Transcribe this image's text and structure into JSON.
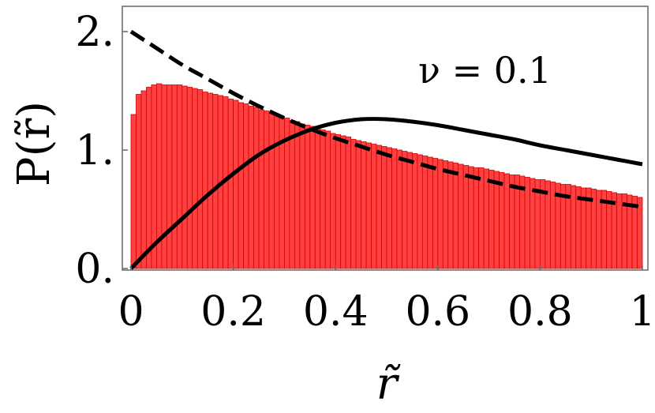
{
  "chart_data": {
    "type": "bar",
    "title": "",
    "xlabel": "r̃",
    "ylabel": "P(r̃)",
    "annotation": "ν = 0.1",
    "xlim": [
      0,
      1
    ],
    "ylim": [
      0,
      2.2
    ],
    "x_ticks": [
      {
        "value": 0,
        "label": "0"
      },
      {
        "value": 0.2,
        "label": "0.2"
      },
      {
        "value": 0.4,
        "label": "0.4"
      },
      {
        "value": 0.6,
        "label": "0.6"
      },
      {
        "value": 0.8,
        "label": "0.8"
      },
      {
        "value": 1,
        "label": "1"
      }
    ],
    "y_ticks": [
      {
        "value": 0,
        "label": "0."
      },
      {
        "value": 1,
        "label": "1."
      },
      {
        "value": 2,
        "label": "2."
      }
    ],
    "grid": false,
    "bar_color": "#ff4040",
    "bar_edge_color": "#d40000",
    "histogram": {
      "bin_start": 0,
      "bin_width": 0.01,
      "values": [
        1.3,
        1.47,
        1.5,
        1.53,
        1.55,
        1.56,
        1.55,
        1.55,
        1.55,
        1.55,
        1.54,
        1.53,
        1.52,
        1.51,
        1.49,
        1.48,
        1.47,
        1.46,
        1.45,
        1.43,
        1.42,
        1.4,
        1.39,
        1.37,
        1.36,
        1.34,
        1.33,
        1.31,
        1.3,
        1.28,
        1.27,
        1.25,
        1.24,
        1.22,
        1.21,
        1.2,
        1.18,
        1.17,
        1.16,
        1.14,
        1.13,
        1.12,
        1.11,
        1.09,
        1.08,
        1.07,
        1.06,
        1.05,
        1.04,
        1.03,
        1.02,
        1.01,
        1.0,
        0.99,
        0.98,
        0.97,
        0.96,
        0.95,
        0.94,
        0.93,
        0.92,
        0.91,
        0.9,
        0.89,
        0.88,
        0.87,
        0.86,
        0.85,
        0.85,
        0.84,
        0.83,
        0.82,
        0.81,
        0.8,
        0.79,
        0.79,
        0.78,
        0.77,
        0.76,
        0.75,
        0.75,
        0.74,
        0.73,
        0.72,
        0.71,
        0.71,
        0.7,
        0.69,
        0.68,
        0.68,
        0.67,
        0.66,
        0.66,
        0.65,
        0.64,
        0.63,
        0.63,
        0.62,
        0.61,
        0.6
      ]
    },
    "series": [
      {
        "style": "solid",
        "x": [
          0,
          0.05,
          0.1,
          0.15,
          0.2,
          0.25,
          0.3,
          0.35,
          0.4,
          0.45,
          0.5,
          0.55,
          0.6,
          0.65,
          0.7,
          0.75,
          0.8,
          0.85,
          0.9,
          0.95,
          1
        ],
        "y": [
          0,
          0.22,
          0.42,
          0.62,
          0.8,
          0.96,
          1.08,
          1.17,
          1.23,
          1.26,
          1.26,
          1.24,
          1.21,
          1.17,
          1.13,
          1.09,
          1.04,
          1.0,
          0.96,
          0.92,
          0.88
        ]
      },
      {
        "style": "dashed",
        "x": [
          0,
          0.05,
          0.1,
          0.15,
          0.2,
          0.25,
          0.3,
          0.35,
          0.4,
          0.45,
          0.5,
          0.55,
          0.6,
          0.65,
          0.7,
          0.75,
          0.8,
          0.85,
          0.9,
          0.95,
          1
        ],
        "y": [
          2.0,
          1.86,
          1.72,
          1.6,
          1.48,
          1.37,
          1.27,
          1.18,
          1.1,
          1.03,
          0.96,
          0.9,
          0.84,
          0.79,
          0.74,
          0.69,
          0.65,
          0.61,
          0.58,
          0.55,
          0.52
        ]
      }
    ]
  }
}
